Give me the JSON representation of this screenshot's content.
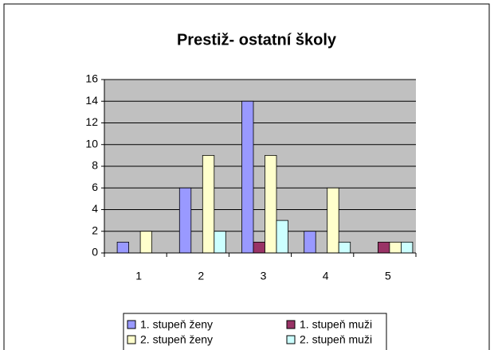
{
  "chart_data": {
    "type": "bar",
    "title": "Prestiž- ostatní školy",
    "categories": [
      "1",
      "2",
      "3",
      "4",
      "5"
    ],
    "series": [
      {
        "name": "1. stupeň ženy",
        "color": "#9999ff",
        "values": [
          1,
          6,
          14,
          2,
          0
        ]
      },
      {
        "name": "1. stupeň muži",
        "color": "#993366",
        "values": [
          0,
          0,
          1,
          0,
          1
        ]
      },
      {
        "name": "2. stupeň ženy",
        "color": "#ffffcc",
        "values": [
          2,
          9,
          9,
          6,
          1
        ]
      },
      {
        "name": "2. stupeň muži",
        "color": "#ccffff",
        "values": [
          0,
          2,
          3,
          1,
          1
        ]
      }
    ],
    "ylim": [
      0,
      16
    ],
    "yticks": [
      0,
      2,
      4,
      6,
      8,
      10,
      12,
      14,
      16
    ],
    "grid": true,
    "legend": "bottom"
  }
}
